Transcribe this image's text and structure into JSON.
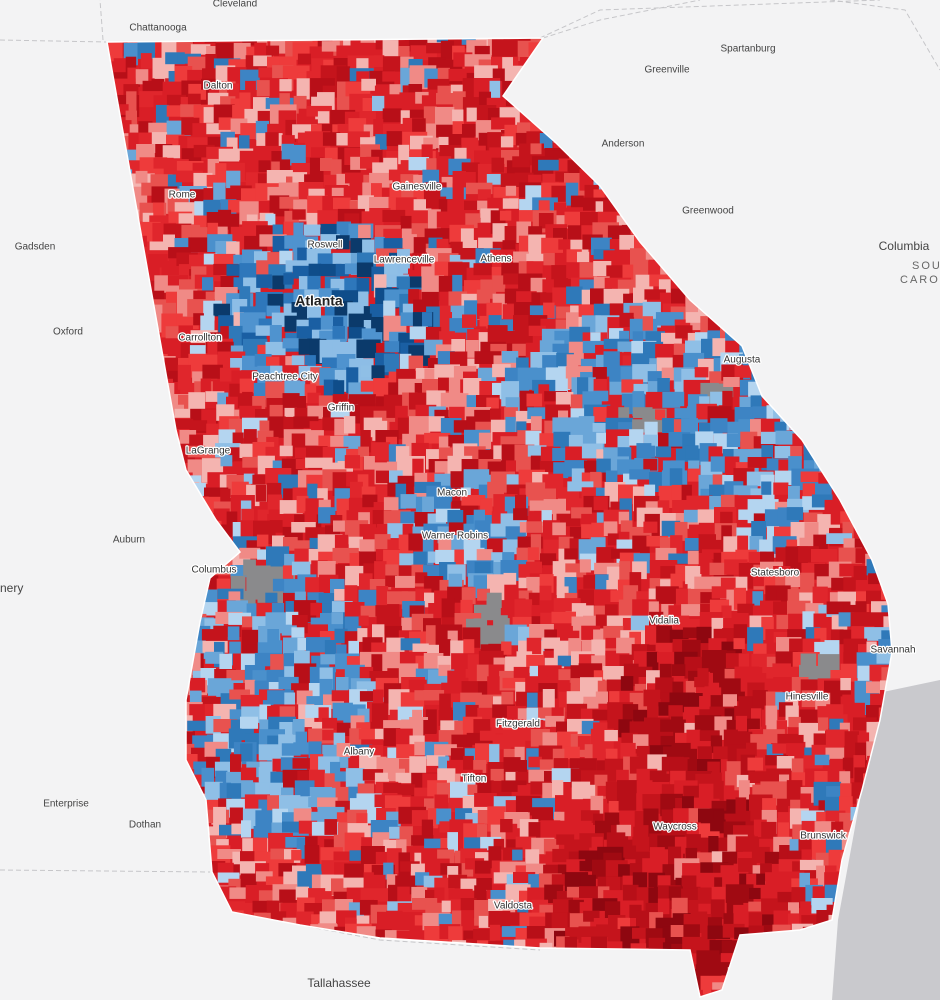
{
  "places": [
    "Chattanooga",
    "Cleveland",
    "Spartanburg",
    "Greenville",
    "Dalton",
    "Anderson",
    "Gainesville",
    "Rome",
    "Greenwood",
    "Columbia",
    "SOU",
    "CARO",
    "Gadsden",
    "Roswell",
    "Lawrenceville",
    "Athens",
    "Atlanta",
    "Oxford",
    "Carrollton",
    "Augusta",
    "Peachtree City",
    "Griffin",
    "LaGrange",
    "Macon",
    "Warner Robins",
    "Auburn",
    "Columbus",
    "nery",
    "Statesboro",
    "Vidalia",
    "Savannah",
    "Hinesville",
    "Fitzgerald",
    "Albany",
    "Tifton",
    "Enterprise",
    "Dothan",
    "Waycross",
    "Brunswick",
    "Valdosta",
    "Tallahassee"
  ]
}
